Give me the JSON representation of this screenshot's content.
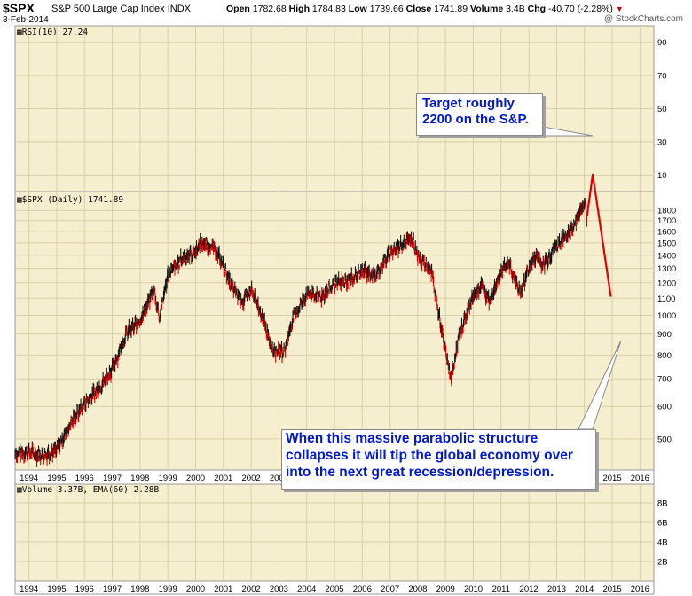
{
  "header": {
    "symbol": "$SPX",
    "name": "S&P 500 Large Cap Index",
    "exchange": "INDX",
    "date": "3-Feb-2014",
    "open_label": "Open",
    "open": "1782.68",
    "high_label": "High",
    "high": "1784.83",
    "low_label": "Low",
    "low": "1739.66",
    "close_label": "Close",
    "close": "1741.89",
    "volume_label": "Volume",
    "volume": "3.4B",
    "chg_label": "Chg",
    "chg": "-40.70 (-2.28%)",
    "brand": "@ StockCharts.com"
  },
  "colors": {
    "panel_bg": "#f6efcf",
    "grid": "#d9cfa8",
    "price": "#111111",
    "down": "#cc0000",
    "arrow": "#e00000",
    "callout_text": "#0018d0"
  },
  "callouts": {
    "target": "Target roughly 2200 on the S&P.",
    "warning": "When this massive parabolic structure collapses it will tip the global economy over into the next great recession/depression."
  },
  "chart_data": [
    {
      "type": "line",
      "panel": "rsi",
      "label": "RSI(10) 27.24",
      "y_ticks": [
        10,
        30,
        50,
        70,
        90
      ],
      "ylim": [
        0,
        100
      ],
      "series": []
    },
    {
      "type": "line",
      "panel": "price",
      "label": "$SPX (Daily) 1741.89",
      "scale": "log",
      "y_ticks": [
        500,
        600,
        700,
        800,
        900,
        1000,
        1100,
        1200,
        1300,
        1400,
        1500,
        1600,
        1700,
        1800
      ],
      "x_ticks": [
        "1994",
        "1995",
        "1996",
        "1997",
        "1998",
        "1999",
        "2000",
        "2001",
        "2002",
        "2003",
        "2004",
        "2005",
        "2006",
        "2007",
        "2008",
        "2009",
        "2010",
        "2011",
        "2012",
        "2013",
        "2014",
        "2015",
        "2016"
      ],
      "xlim": [
        1993.5,
        2016.5
      ],
      "ylim": [
        420,
        2000
      ],
      "series": [
        {
          "x": [
            1993.5,
            1994.0,
            1994.5,
            1995.0,
            1995.5,
            1996.0,
            1996.5,
            1997.0,
            1997.5,
            1998.0,
            1998.5,
            1998.7,
            1999.0,
            1999.5,
            2000.0,
            2000.2,
            2000.7,
            2001.0,
            2001.3,
            2001.7,
            2002.0,
            2002.5,
            2002.8,
            2003.2,
            2003.5,
            2004.0,
            2004.5,
            2005.0,
            2005.5,
            2006.0,
            2006.5,
            2007.0,
            2007.5,
            2007.8,
            2008.0,
            2008.5,
            2008.9,
            2009.2,
            2009.5,
            2010.0,
            2010.3,
            2010.6,
            2011.0,
            2011.3,
            2011.7,
            2012.0,
            2012.3,
            2012.5,
            2013.0,
            2013.5,
            2013.9,
            2014.05,
            2014.09
          ],
          "y": [
            460,
            465,
            455,
            470,
            545,
            610,
            660,
            740,
            900,
            970,
            1150,
            990,
            1250,
            1370,
            1430,
            1500,
            1450,
            1320,
            1170,
            1080,
            1150,
            950,
            820,
            820,
            980,
            1130,
            1110,
            1190,
            1210,
            1280,
            1250,
            1420,
            1500,
            1540,
            1400,
            1270,
            880,
            700,
            900,
            1120,
            1180,
            1080,
            1280,
            1330,
            1130,
            1310,
            1400,
            1320,
            1480,
            1600,
            1830,
            1840,
            1742
          ]
        },
        {
          "name": "projection",
          "x": [
            2014.09,
            2014.3,
            2014.95
          ],
          "y": [
            1742,
            2200,
            1110
          ]
        }
      ]
    },
    {
      "type": "bar",
      "panel": "volume",
      "label": "Volume 3.37B, EMA(60) 2.28B",
      "y_ticks": [
        "2B",
        "4B",
        "6B",
        "8B"
      ],
      "series": []
    }
  ]
}
